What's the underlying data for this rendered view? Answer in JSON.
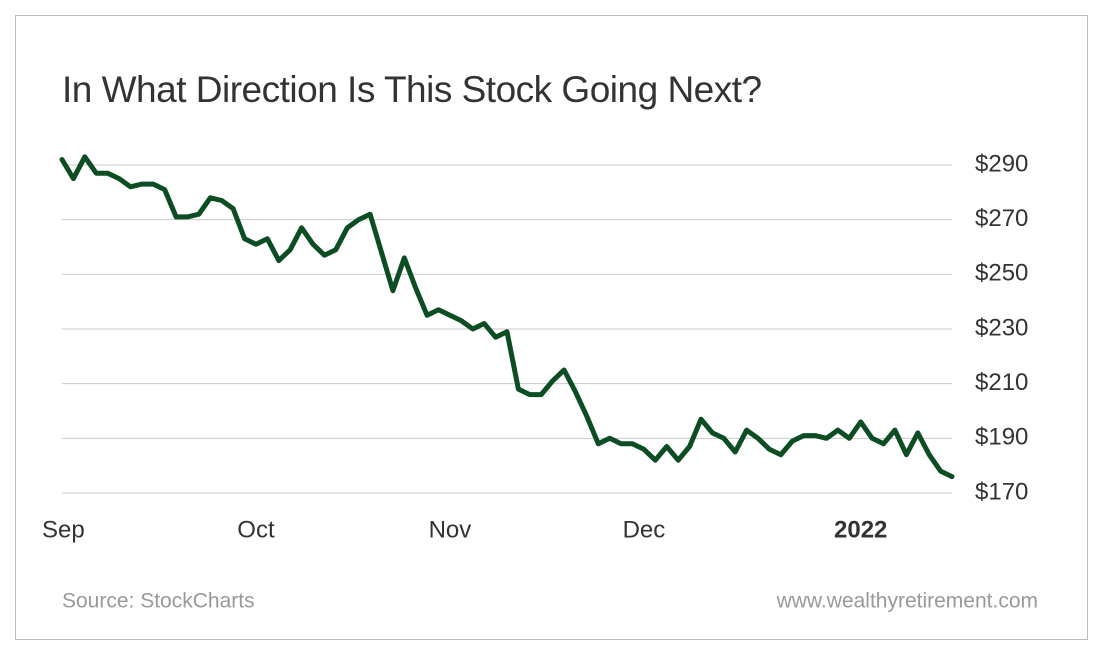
{
  "chart_data": {
    "type": "line",
    "title": "In What Direction Is This Stock Going Next?",
    "source": "Source: StockCharts",
    "website": "www.wealthyretirement.com",
    "categories": [
      "Sep",
      null,
      null,
      null,
      null,
      null,
      null,
      null,
      null,
      null,
      null,
      null,
      null,
      null,
      null,
      null,
      null,
      "Oct",
      null,
      null,
      null,
      null,
      null,
      null,
      null,
      null,
      null,
      null,
      null,
      null,
      null,
      null,
      null,
      null,
      "Nov",
      null,
      null,
      null,
      null,
      null,
      null,
      null,
      null,
      null,
      null,
      null,
      null,
      null,
      null,
      null,
      null,
      "Dec",
      null,
      null,
      null,
      null,
      null,
      null,
      null,
      null,
      null,
      null,
      null,
      null,
      null,
      null,
      null,
      null,
      null,
      null,
      "2022",
      null,
      null,
      null,
      null,
      null,
      null,
      null,
      null
    ],
    "series": [
      {
        "color": "#0d4d24",
        "values": [
          292,
          285,
          293,
          287,
          287,
          285,
          282,
          283,
          283,
          281,
          271,
          271,
          272,
          278,
          277,
          274,
          263,
          261,
          263,
          255,
          259,
          267,
          261,
          257,
          259,
          267,
          270,
          272,
          258,
          244,
          256,
          245,
          235,
          237,
          235,
          233,
          230,
          232,
          227,
          229,
          208,
          206,
          206,
          211,
          215,
          207,
          198,
          188,
          190,
          188,
          188,
          186,
          182,
          187,
          182,
          187,
          197,
          192,
          190,
          185,
          193,
          190,
          186,
          184,
          189,
          191,
          191,
          190,
          193,
          190,
          196,
          190,
          188,
          193,
          184,
          192,
          184,
          178,
          176
        ]
      }
    ],
    "ylim": [
      167,
      295
    ],
    "yticks": [
      {
        "value": 170,
        "label": "$170"
      },
      {
        "value": 190,
        "label": "$190"
      },
      {
        "value": 210,
        "label": "$210"
      },
      {
        "value": 230,
        "label": "$230"
      },
      {
        "value": 250,
        "label": "$250"
      },
      {
        "value": 270,
        "label": "$270"
      },
      {
        "value": 290,
        "label": "$290"
      }
    ],
    "grid": true
  }
}
